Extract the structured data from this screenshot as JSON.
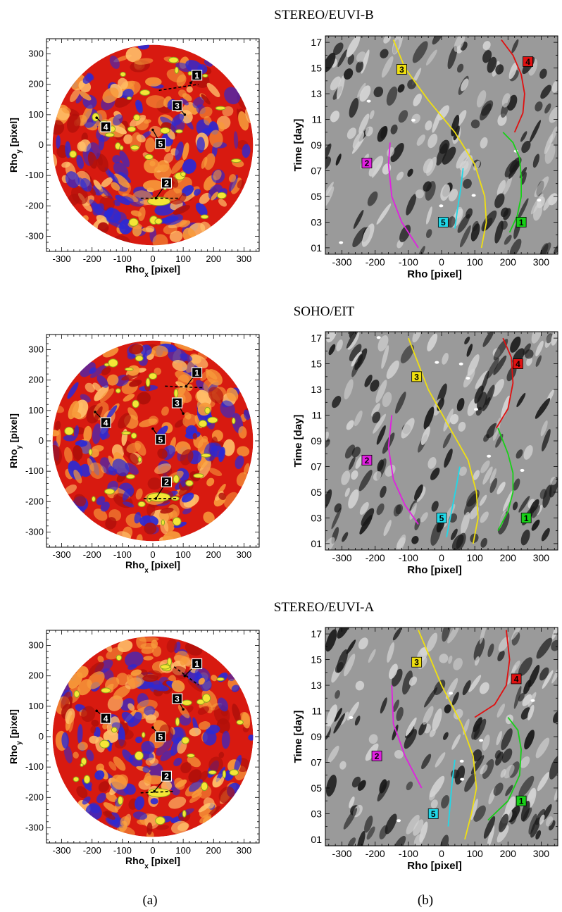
{
  "figure": {
    "panel_titles": [
      "STEREO/EUVI-B",
      "SOHO/EIT",
      "STEREO/EUVI-A"
    ],
    "captions": [
      "(a)",
      "(b)"
    ]
  },
  "colors": {
    "map_blue": "#2a2ad6",
    "map_red": "#d81a10",
    "map_orange": "#f79a3a",
    "map_yellow": "#f5e636",
    "track_1": "#18d018",
    "track_2": "#e020e0",
    "track_3": "#f0e010",
    "track_4": "#e01010",
    "track_5": "#20d8e8"
  },
  "chart_data": [
    {
      "type": "heatmap",
      "title": "STEREO/EUVI-B",
      "xlabel": "Rho_x [pixel]",
      "ylabel": "Rho_y [pixel]",
      "xlim": [
        -350,
        350
      ],
      "ylim": [
        350,
        -350
      ],
      "x_ticks": [
        -300,
        -200,
        -100,
        0,
        100,
        200,
        300
      ],
      "y_ticks": [
        -300,
        -200,
        -100,
        0,
        100,
        200,
        300
      ],
      "annotations": [
        {
          "label": "1",
          "from": [
            125,
            205
          ],
          "to": [
            145,
            230
          ],
          "segment": [
            [
              20,
              180
            ],
            [
              150,
              200
            ]
          ]
        },
        {
          "label": "2",
          "from": [
            10,
            -175
          ],
          "to": [
            45,
            -125
          ],
          "segment": [
            [
              -40,
              -175
            ],
            [
              90,
              -175
            ]
          ]
        },
        {
          "label": "3",
          "from": [
            105,
            100
          ],
          "to": [
            80,
            130
          ]
        },
        {
          "label": "4",
          "from": [
            -185,
            90
          ],
          "to": [
            -155,
            60
          ]
        },
        {
          "label": "5",
          "from": [
            0,
            50
          ],
          "to": [
            25,
            5
          ]
        }
      ]
    },
    {
      "type": "line",
      "title": "STEREO/EUVI-B",
      "xlabel": "Rho [pixel]",
      "ylabel": "Time [day]",
      "xlim": [
        -350,
        350
      ],
      "ylim": [
        0.5,
        17.5
      ],
      "x_ticks": [
        -300,
        -200,
        -100,
        0,
        100,
        200,
        300
      ],
      "y_ticks": [
        "01",
        "03",
        "05",
        "07",
        "09",
        "11",
        "13",
        "15",
        "17"
      ],
      "series": [
        {
          "name": "1",
          "x": [
            205,
            228,
            240,
            240,
            235,
            215,
            185
          ],
          "y": [
            2.2,
            3.5,
            5.0,
            6.5,
            8.0,
            9.2,
            10.0
          ],
          "label_at": [
            240,
            3.0
          ]
        },
        {
          "name": "2",
          "x": [
            -70,
            -120,
            -150,
            -160,
            -155
          ],
          "y": [
            1.0,
            3.0,
            5.0,
            7.5,
            9.2
          ],
          "label_at": [
            -225,
            7.6
          ]
        },
        {
          "name": "3",
          "x": [
            120,
            135,
            130,
            100,
            40,
            -40,
            -110,
            -145
          ],
          "y": [
            1.0,
            3.0,
            5.0,
            7.5,
            10.0,
            12.5,
            15.0,
            17.2
          ],
          "label_at": [
            -120,
            14.9
          ]
        },
        {
          "name": "4",
          "x": [
            220,
            245,
            250,
            240,
            215,
            180
          ],
          "y": [
            10.0,
            11.5,
            13.0,
            14.5,
            16.0,
            17.2
          ],
          "label_at": [
            260,
            15.5
          ]
        },
        {
          "name": "5",
          "x": [
            40,
            48,
            57,
            65
          ],
          "y": [
            2.5,
            4.0,
            5.5,
            7.2
          ],
          "label_at": [
            5,
            3.0
          ]
        }
      ]
    },
    {
      "type": "heatmap",
      "title": "SOHO/EIT",
      "xlabel": "Rho_x [pixel]",
      "ylabel": "Rho_y [pixel]",
      "xlim": [
        -350,
        350
      ],
      "ylim": [
        350,
        -350
      ],
      "x_ticks": [
        -300,
        -200,
        -100,
        0,
        100,
        200,
        300
      ],
      "y_ticks": [
        -300,
        -200,
        -100,
        0,
        100,
        200,
        300
      ],
      "annotations": [
        {
          "label": "1",
          "from": [
            110,
            180
          ],
          "to": [
            145,
            225
          ],
          "segment": [
            [
              40,
              180
            ],
            [
              165,
              175
            ]
          ]
        },
        {
          "label": "2",
          "from": [
            10,
            -190
          ],
          "to": [
            45,
            -135
          ],
          "segment": [
            [
              -30,
              -190
            ],
            [
              80,
              -190
            ]
          ]
        },
        {
          "label": "3",
          "from": [
            100,
            90
          ],
          "to": [
            80,
            125
          ]
        },
        {
          "label": "4",
          "from": [
            -190,
            95
          ],
          "to": [
            -155,
            60
          ]
        },
        {
          "label": "5",
          "from": [
            0,
            40
          ],
          "to": [
            25,
            5
          ]
        }
      ]
    },
    {
      "type": "line",
      "title": "SOHO/EIT",
      "xlabel": "Rho [pixel]",
      "ylabel": "Time [day]",
      "xlim": [
        -350,
        350
      ],
      "ylim": [
        0.5,
        17.5
      ],
      "x_ticks": [
        -300,
        -200,
        -100,
        0,
        100,
        200,
        300
      ],
      "y_ticks": [
        "01",
        "03",
        "05",
        "07",
        "09",
        "11",
        "13",
        "15",
        "17"
      ],
      "series": [
        {
          "name": "1",
          "x": [
            170,
            200,
            215,
            215,
            200,
            170
          ],
          "y": [
            2.0,
            3.5,
            5.0,
            6.5,
            8.0,
            10.0
          ],
          "label_at": [
            255,
            3.0
          ]
        },
        {
          "name": "2",
          "x": [
            -70,
            -110,
            -145,
            -160,
            -150
          ],
          "y": [
            2.5,
            4.0,
            6.0,
            8.5,
            11.0
          ],
          "label_at": [
            -225,
            7.5
          ]
        },
        {
          "name": "3",
          "x": [
            95,
            110,
            105,
            80,
            25,
            -40,
            -100
          ],
          "y": [
            1.0,
            3.0,
            5.0,
            7.5,
            10.0,
            13.0,
            17.0
          ],
          "label_at": [
            -75,
            14.0
          ]
        },
        {
          "name": "4",
          "x": [
            165,
            200,
            215,
            210,
            185
          ],
          "y": [
            10.0,
            11.5,
            13.5,
            15.5,
            17.0
          ],
          "label_at": [
            230,
            15.0
          ]
        },
        {
          "name": "5",
          "x": [
            15,
            30,
            45,
            55
          ],
          "y": [
            1.5,
            3.5,
            5.5,
            7.0
          ],
          "label_at": [
            0,
            3.0
          ]
        }
      ]
    },
    {
      "type": "heatmap",
      "title": "STEREO/EUVI-A",
      "xlabel": "Rho_x [pixel]",
      "ylabel": "Rho_y [pixel]",
      "xlim": [
        -350,
        350
      ],
      "ylim": [
        350,
        -350
      ],
      "x_ticks": [
        -300,
        -200,
        -100,
        0,
        100,
        200,
        300
      ],
      "y_ticks": [
        -300,
        -200,
        -100,
        0,
        100,
        200,
        300
      ],
      "annotations": [
        {
          "label": "1",
          "from": [
            105,
            200
          ],
          "to": [
            145,
            240
          ],
          "segment": [
            [
              70,
              230
            ],
            [
              150,
              170
            ]
          ]
        },
        {
          "label": "2",
          "from": [
            5,
            -180
          ],
          "to": [
            45,
            -130
          ],
          "segment": [
            [
              -40,
              -185
            ],
            [
              70,
              -180
            ]
          ]
        },
        {
          "label": "3",
          "from": [
            100,
            90
          ],
          "to": [
            80,
            125
          ]
        },
        {
          "label": "4",
          "from": [
            -185,
            85
          ],
          "to": [
            -155,
            60
          ]
        },
        {
          "label": "5",
          "from": [
            0,
            30
          ],
          "to": [
            25,
            0
          ]
        }
      ]
    },
    {
      "type": "line",
      "title": "STEREO/EUVI-A",
      "xlabel": "Rho [pixel]",
      "ylabel": "Time [day]",
      "xlim": [
        -350,
        350
      ],
      "ylim": [
        0.5,
        17.5
      ],
      "x_ticks": [
        -300,
        -200,
        -100,
        0,
        100,
        200,
        300
      ],
      "y_ticks": [
        "01",
        "03",
        "05",
        "07",
        "09",
        "11",
        "13",
        "15",
        "17"
      ],
      "series": [
        {
          "name": "1",
          "x": [
            140,
            200,
            235,
            240,
            230,
            200
          ],
          "y": [
            2.5,
            4.0,
            6.0,
            8.0,
            9.5,
            10.5
          ],
          "label_at": [
            240,
            4.0
          ]
        },
        {
          "name": "2",
          "x": [
            -60,
            -110,
            -145,
            -150
          ],
          "y": [
            5.0,
            7.5,
            10.0,
            13.0
          ],
          "label_at": [
            -195,
            7.5
          ]
        },
        {
          "name": "3",
          "x": [
            70,
            90,
            105,
            95,
            60,
            0,
            -70
          ],
          "y": [
            1.0,
            3.0,
            5.0,
            7.5,
            10.0,
            13.0,
            17.3
          ],
          "label_at": [
            -75,
            14.8
          ]
        },
        {
          "name": "4",
          "x": [
            100,
            160,
            195,
            205,
            195
          ],
          "y": [
            10.5,
            11.5,
            13.0,
            15.0,
            17.3
          ],
          "label_at": [
            225,
            13.5
          ]
        },
        {
          "name": "5",
          "x": [
            20,
            25,
            32,
            40
          ],
          "y": [
            2.0,
            3.5,
            5.5,
            7.2
          ],
          "label_at": [
            -25,
            3.0
          ]
        }
      ]
    }
  ]
}
